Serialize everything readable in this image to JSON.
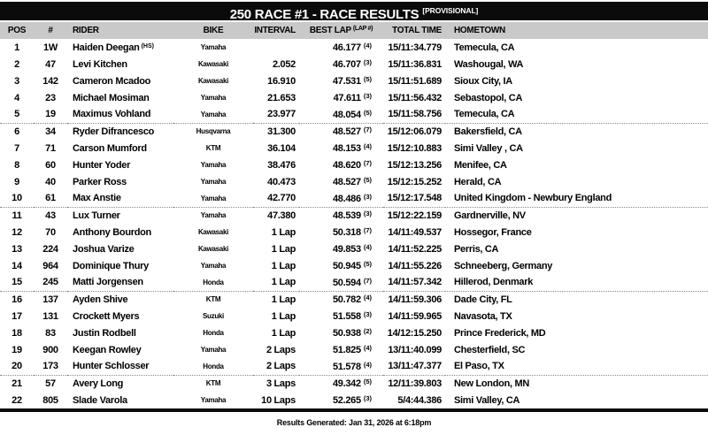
{
  "title": {
    "main": "250 RACE #1 - RACE RESULTS",
    "tag": "[PROVISIONAL]"
  },
  "columns": {
    "pos": "POS",
    "num": "#",
    "rider": "RIDER",
    "bike": "BIKE",
    "interval": "INTERVAL",
    "best_lap": "BEST LAP",
    "best_lap_sup": "(LAP #)",
    "total_time": "TOTAL TIME",
    "hometown": "HOMETOWN"
  },
  "rows": [
    {
      "pos": "1",
      "num": "1W",
      "rider": "Haiden Deegan",
      "rider_sup": "(HS)",
      "bike": "Yamaha",
      "interval": "",
      "best_lap": "46.177",
      "best_lap_num": "(4)",
      "total_time": "15/11:34.779",
      "hometown": "Temecula, CA"
    },
    {
      "pos": "2",
      "num": "47",
      "rider": "Levi Kitchen",
      "rider_sup": "",
      "bike": "Kawasaki",
      "interval": "2.052",
      "best_lap": "46.707",
      "best_lap_num": "(3)",
      "total_time": "15/11:36.831",
      "hometown": "Washougal, WA"
    },
    {
      "pos": "3",
      "num": "142",
      "rider": "Cameron Mcadoo",
      "rider_sup": "",
      "bike": "Kawasaki",
      "interval": "16.910",
      "best_lap": "47.531",
      "best_lap_num": "(5)",
      "total_time": "15/11:51.689",
      "hometown": "Sioux City, IA"
    },
    {
      "pos": "4",
      "num": "23",
      "rider": "Michael Mosiman",
      "rider_sup": "",
      "bike": "Yamaha",
      "interval": "21.653",
      "best_lap": "47.611",
      "best_lap_num": "(3)",
      "total_time": "15/11:56.432",
      "hometown": "Sebastopol, CA"
    },
    {
      "pos": "5",
      "num": "19",
      "rider": "Maximus Vohland",
      "rider_sup": "",
      "bike": "Yamaha",
      "interval": "23.977",
      "best_lap": "48.054",
      "best_lap_num": "(5)",
      "total_time": "15/11:58.756",
      "hometown": "Temecula, CA"
    },
    {
      "pos": "6",
      "num": "34",
      "rider": "Ryder Difrancesco",
      "rider_sup": "",
      "bike": "Husqvarna",
      "interval": "31.300",
      "best_lap": "48.527",
      "best_lap_num": "(7)",
      "total_time": "15/12:06.079",
      "hometown": "Bakersfield, CA"
    },
    {
      "pos": "7",
      "num": "71",
      "rider": "Carson Mumford",
      "rider_sup": "",
      "bike": "KTM",
      "interval": "36.104",
      "best_lap": "48.153",
      "best_lap_num": "(4)",
      "total_time": "15/12:10.883",
      "hometown": "Simi Valley , CA"
    },
    {
      "pos": "8",
      "num": "60",
      "rider": "Hunter Yoder",
      "rider_sup": "",
      "bike": "Yamaha",
      "interval": "38.476",
      "best_lap": "48.620",
      "best_lap_num": "(7)",
      "total_time": "15/12:13.256",
      "hometown": "Menifee, CA"
    },
    {
      "pos": "9",
      "num": "40",
      "rider": "Parker Ross",
      "rider_sup": "",
      "bike": "Yamaha",
      "interval": "40.473",
      "best_lap": "48.527",
      "best_lap_num": "(5)",
      "total_time": "15/12:15.252",
      "hometown": "Herald, CA"
    },
    {
      "pos": "10",
      "num": "61",
      "rider": "Max Anstie",
      "rider_sup": "",
      "bike": "Yamaha",
      "interval": "42.770",
      "best_lap": "48.486",
      "best_lap_num": "(3)",
      "total_time": "15/12:17.548",
      "hometown": "United Kingdom - Newbury England"
    },
    {
      "pos": "11",
      "num": "43",
      "rider": "Lux Turner",
      "rider_sup": "",
      "bike": "Yamaha",
      "interval": "47.380",
      "best_lap": "48.539",
      "best_lap_num": "(3)",
      "total_time": "15/12:22.159",
      "hometown": "Gardnerville, NV"
    },
    {
      "pos": "12",
      "num": "70",
      "rider": "Anthony Bourdon",
      "rider_sup": "",
      "bike": "Kawasaki",
      "interval": "1 Lap",
      "best_lap": "50.318",
      "best_lap_num": "(7)",
      "total_time": "14/11:49.537",
      "hometown": "Hossegor, France"
    },
    {
      "pos": "13",
      "num": "224",
      "rider": "Joshua Varize",
      "rider_sup": "",
      "bike": "Kawasaki",
      "interval": "1 Lap",
      "best_lap": "49.853",
      "best_lap_num": "(4)",
      "total_time": "14/11:52.225",
      "hometown": "Perris, CA"
    },
    {
      "pos": "14",
      "num": "964",
      "rider": "Dominique Thury",
      "rider_sup": "",
      "bike": "Yamaha",
      "interval": "1 Lap",
      "best_lap": "50.945",
      "best_lap_num": "(5)",
      "total_time": "14/11:55.226",
      "hometown": "Schneeberg, Germany"
    },
    {
      "pos": "15",
      "num": "245",
      "rider": "Matti Jorgensen",
      "rider_sup": "",
      "bike": "Honda",
      "interval": "1 Lap",
      "best_lap": "50.594",
      "best_lap_num": "(7)",
      "total_time": "14/11:57.342",
      "hometown": "Hillerod, Denmark"
    },
    {
      "pos": "16",
      "num": "137",
      "rider": "Ayden Shive",
      "rider_sup": "",
      "bike": "KTM",
      "interval": "1 Lap",
      "best_lap": "50.782",
      "best_lap_num": "(4)",
      "total_time": "14/11:59.306",
      "hometown": "Dade City, FL"
    },
    {
      "pos": "17",
      "num": "131",
      "rider": "Crockett Myers",
      "rider_sup": "",
      "bike": "Suzuki",
      "interval": "1 Lap",
      "best_lap": "51.558",
      "best_lap_num": "(3)",
      "total_time": "14/11:59.965",
      "hometown": "Navasota, TX"
    },
    {
      "pos": "18",
      "num": "83",
      "rider": "Justin Rodbell",
      "rider_sup": "",
      "bike": "Honda",
      "interval": "1 Lap",
      "best_lap": "50.938",
      "best_lap_num": "(2)",
      "total_time": "14/12:15.250",
      "hometown": "Prince Frederick, MD"
    },
    {
      "pos": "19",
      "num": "900",
      "rider": "Keegan Rowley",
      "rider_sup": "",
      "bike": "Yamaha",
      "interval": "2 Laps",
      "best_lap": "51.825",
      "best_lap_num": "(4)",
      "total_time": "13/11:40.099",
      "hometown": "Chesterfield, SC"
    },
    {
      "pos": "20",
      "num": "173",
      "rider": "Hunter Schlosser",
      "rider_sup": "",
      "bike": "Honda",
      "interval": "2 Laps",
      "best_lap": "51.578",
      "best_lap_num": "(4)",
      "total_time": "13/11:47.377",
      "hometown": "El Paso, TX"
    },
    {
      "pos": "21",
      "num": "57",
      "rider": "Avery Long",
      "rider_sup": "",
      "bike": "KTM",
      "interval": "3 Laps",
      "best_lap": "49.342",
      "best_lap_num": "(5)",
      "total_time": "12/11:39.803",
      "hometown": "New London, MN"
    },
    {
      "pos": "22",
      "num": "805",
      "rider": "Slade Varola",
      "rider_sup": "",
      "bike": "Yamaha",
      "interval": "10 Laps",
      "best_lap": "52.265",
      "best_lap_num": "(3)",
      "total_time": "5/4:44.386",
      "hometown": "Simi Valley, CA"
    }
  ],
  "footer": {
    "generated": "Results Generated: Jan 31, 2026 at 6:18pm"
  },
  "colors": {
    "title_bar_bg": "#0b0b0b",
    "title_bar_text": "#ffffff",
    "column_header_bg": "#c9c9c9",
    "text": "#000000",
    "page_bg": "#ffffff",
    "separator": "#8a8a8a"
  }
}
